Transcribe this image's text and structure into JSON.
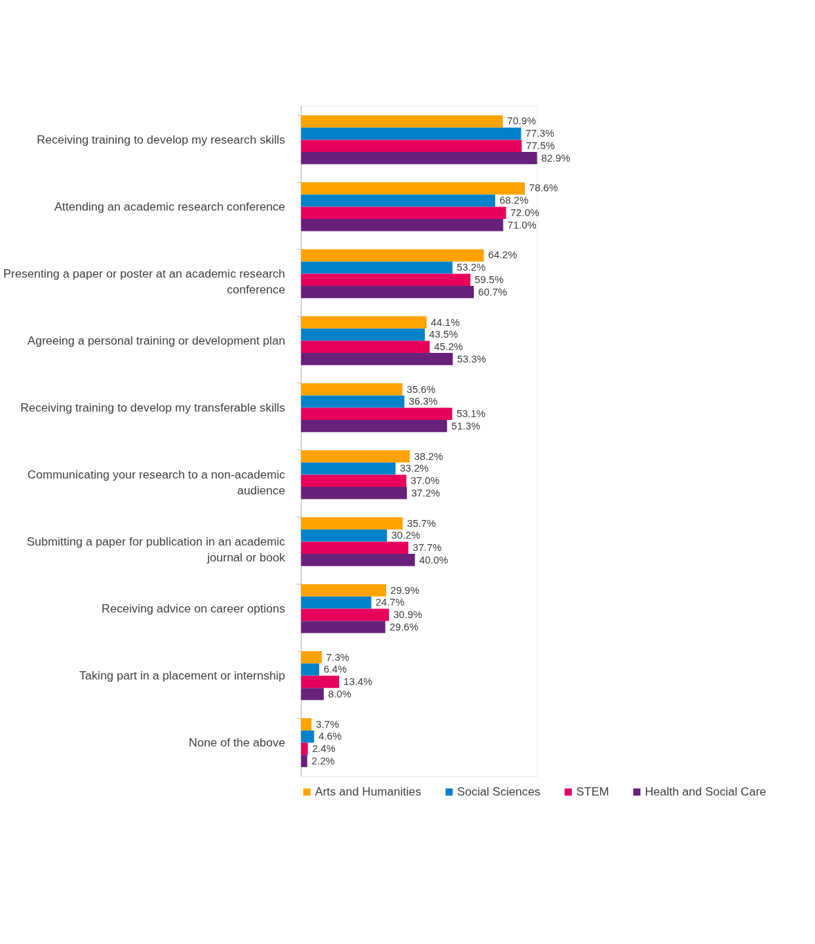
{
  "chart_data": {
    "type": "bar",
    "orientation": "horizontal",
    "legend": "bottom",
    "tick_labels": "y",
    "categories": [
      "Receiving training to develop my research skills",
      "Attending an academic research conference",
      "Presenting a paper or poster at an academic research conference",
      "Agreeing a personal training or development plan",
      "Receiving training to develop my transferable skills",
      "Communicating your research to a non-academic audience",
      "Submitting a paper for publication in an academic journal or book",
      "Receiving advice on career options",
      "Taking part in a placement or internship",
      "None of the above"
    ],
    "series": [
      {
        "name": "Arts and Humanities",
        "color": "#ffa300",
        "values": [
          70.9,
          78.6,
          64.2,
          44.1,
          35.6,
          38.2,
          35.7,
          29.9,
          7.3,
          3.7
        ],
        "value_labels": [
          "70.9%",
          "78.6%",
          "64.2%",
          "44.1%",
          "35.6%",
          "38.2%",
          "35.7%",
          "29.9%",
          "7.3%",
          "3.7%"
        ]
      },
      {
        "name": "Social Sciences",
        "color": "#0082ca",
        "values": [
          77.3,
          68.2,
          53.2,
          43.5,
          36.3,
          33.2,
          30.2,
          24.7,
          6.4,
          4.6
        ],
        "value_labels": [
          "77.3%",
          "68.2%",
          "53.2%",
          "43.5%",
          "36.3%",
          "33.2%",
          "30.2%",
          "24.7%",
          "6.4%",
          "4.6%"
        ]
      },
      {
        "name": "STEM",
        "color": "#e6005c",
        "values": [
          77.5,
          72.0,
          59.5,
          45.2,
          53.1,
          37.0,
          37.7,
          30.9,
          13.4,
          2.4
        ],
        "value_labels": [
          "77.5%",
          "72.0%",
          "59.5%",
          "45.2%",
          "53.1%",
          "37.0%",
          "37.7%",
          "30.9%",
          "13.4%",
          "2.4%"
        ]
      },
      {
        "name": "Health and Social Care",
        "color": "#68217a",
        "values": [
          82.9,
          71.0,
          60.7,
          53.3,
          51.3,
          37.2,
          40.0,
          29.6,
          8.0,
          2.2
        ],
        "value_labels": [
          "82.9%",
          "71.0%",
          "60.7%",
          "53.3%",
          "51.3%",
          "37.2%",
          "40.0%",
          "29.6%",
          "8.0%",
          "2.2%"
        ]
      }
    ]
  }
}
